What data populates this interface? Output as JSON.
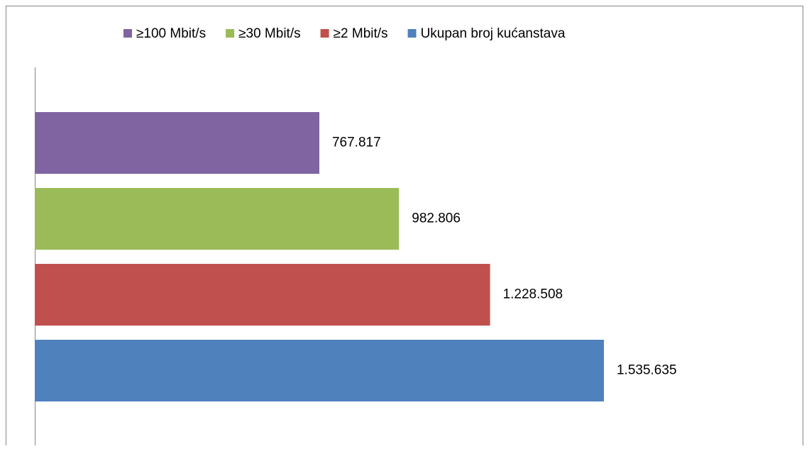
{
  "chart_data": {
    "type": "bar",
    "orientation": "horizontal",
    "categories": [
      null
    ],
    "series": [
      {
        "name": "≥100 Mbit/s",
        "color": "#8064a2",
        "values": [
          767817
        ],
        "value_labels": [
          "767.817"
        ]
      },
      {
        "name": "≥30 Mbit/s",
        "color": "#9bbb59",
        "values": [
          982806
        ],
        "value_labels": [
          "982.806"
        ]
      },
      {
        "name": "≥2 Mbit/s",
        "color": "#c0504d",
        "values": [
          1228508
        ],
        "value_labels": [
          "1.228.508"
        ]
      },
      {
        "name": "Ukupan broj kućanstava",
        "color": "#4f81bd",
        "values": [
          1535635
        ],
        "value_labels": [
          "1.535.635"
        ]
      }
    ],
    "xlim": [
      0,
      2000000
    ],
    "legend": "top"
  }
}
